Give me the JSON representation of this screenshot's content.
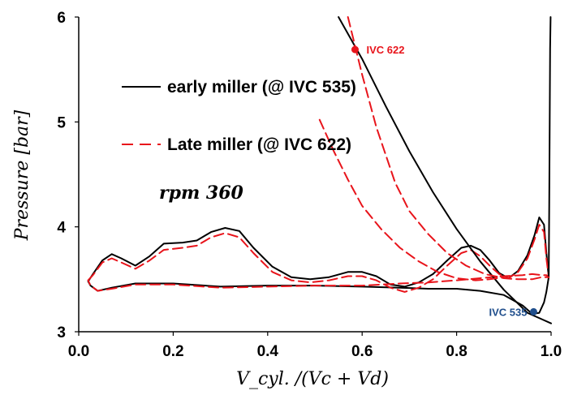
{
  "chart_data": {
    "type": "line",
    "xlabel": "V_cyl. /(Vc + Vd)",
    "ylabel": "Pressure [bar]",
    "xlim": [
      0,
      1
    ],
    "ylim": [
      3,
      6
    ],
    "xticks": [
      "0.0",
      "0.2",
      "0.4",
      "0.6",
      "0.8",
      "1.0"
    ],
    "yticks": [
      "3",
      "4",
      "5",
      "6"
    ],
    "grid": false,
    "legend_position": "top-left",
    "annotation_text": "rpm 360",
    "series": [
      {
        "name": "early miller (@ IVC 535)",
        "color": "#000000",
        "style": "solid",
        "x": [
          0.02,
          0.03,
          0.05,
          0.07,
          0.09,
          0.12,
          0.15,
          0.18,
          0.22,
          0.25,
          0.28,
          0.31,
          0.34,
          0.37,
          0.41,
          0.45,
          0.49,
          0.53,
          0.57,
          0.6,
          0.63,
          0.66,
          0.69,
          0.72,
          0.75,
          0.78,
          0.81,
          0.83,
          0.85,
          0.87,
          0.89,
          0.91,
          0.93,
          0.95,
          0.965,
          0.975,
          0.985,
          0.99,
          0.995,
          0.99,
          0.985,
          0.975,
          0.96,
          0.94,
          0.9,
          0.85,
          0.8,
          0.74,
          0.68,
          0.6,
          0.5,
          0.4,
          0.3,
          0.2,
          0.12,
          0.07,
          0.04,
          0.025,
          0.02
        ],
        "y": [
          3.48,
          3.55,
          3.68,
          3.74,
          3.7,
          3.63,
          3.72,
          3.84,
          3.85,
          3.87,
          3.95,
          3.99,
          3.96,
          3.8,
          3.62,
          3.52,
          3.5,
          3.52,
          3.57,
          3.57,
          3.53,
          3.45,
          3.43,
          3.47,
          3.55,
          3.68,
          3.8,
          3.82,
          3.78,
          3.68,
          3.56,
          3.51,
          3.58,
          3.73,
          3.92,
          4.09,
          4.02,
          3.75,
          3.52,
          3.38,
          3.28,
          3.18,
          3.17,
          3.25,
          3.35,
          3.39,
          3.41,
          3.41,
          3.42,
          3.43,
          3.44,
          3.44,
          3.43,
          3.46,
          3.46,
          3.42,
          3.39,
          3.44,
          3.48
        ]
      },
      {
        "name": "Late miller (@ IVC 622)",
        "color": "#e8141b",
        "style": "dashed",
        "x": [
          0.02,
          0.03,
          0.05,
          0.07,
          0.09,
          0.12,
          0.15,
          0.18,
          0.22,
          0.25,
          0.28,
          0.31,
          0.34,
          0.37,
          0.41,
          0.45,
          0.49,
          0.53,
          0.57,
          0.6,
          0.63,
          0.66,
          0.69,
          0.72,
          0.75,
          0.78,
          0.81,
          0.83,
          0.85,
          0.87,
          0.89,
          0.91,
          0.93,
          0.95,
          0.965,
          0.975,
          0.985,
          0.99,
          0.995,
          0.99,
          0.98,
          0.96,
          0.94,
          0.9,
          0.85,
          0.8,
          0.74,
          0.68,
          0.6,
          0.5,
          0.4,
          0.3,
          0.2,
          0.12,
          0.07,
          0.04,
          0.025,
          0.02
        ],
        "y": [
          3.49,
          3.54,
          3.66,
          3.7,
          3.66,
          3.6,
          3.68,
          3.78,
          3.8,
          3.82,
          3.9,
          3.94,
          3.9,
          3.75,
          3.57,
          3.49,
          3.47,
          3.49,
          3.53,
          3.53,
          3.49,
          3.42,
          3.38,
          3.42,
          3.5,
          3.63,
          3.75,
          3.78,
          3.72,
          3.63,
          3.55,
          3.51,
          3.57,
          3.7,
          3.88,
          4.02,
          3.95,
          3.7,
          3.52,
          3.54,
          3.54,
          3.55,
          3.54,
          3.53,
          3.51,
          3.49,
          3.47,
          3.46,
          3.44,
          3.44,
          3.43,
          3.42,
          3.45,
          3.45,
          3.41,
          3.39,
          3.44,
          3.49
        ]
      },
      {
        "name": "",
        "color": "#000000",
        "style": "solid",
        "x": [
          0.995,
          0.996,
          0.997,
          0.998,
          0.999
        ],
        "y": [
          3.52,
          4.2,
          5.0,
          5.7,
          6.0
        ]
      },
      {
        "name": "",
        "color": "#000000",
        "style": "solid",
        "x": [
          0.55,
          0.6,
          0.65,
          0.7,
          0.75,
          0.8,
          0.85,
          0.9,
          0.95,
          0.98,
          1.0
        ],
        "y": [
          6.0,
          5.6,
          5.15,
          4.72,
          4.33,
          3.98,
          3.67,
          3.4,
          3.18,
          3.12,
          3.08
        ]
      },
      {
        "name": "",
        "color": "#e8141b",
        "style": "dashed",
        "x": [
          0.57,
          0.6,
          0.63,
          0.67,
          0.7,
          0.74,
          0.78,
          0.82,
          0.86,
          0.9,
          0.93,
          0.96,
          0.98,
          0.995
        ],
        "y": [
          6.0,
          5.45,
          4.95,
          4.42,
          4.15,
          3.93,
          3.75,
          3.63,
          3.55,
          3.51,
          3.5,
          3.5,
          3.52,
          3.52
        ]
      },
      {
        "name": "",
        "color": "#e8141b",
        "style": "dashed",
        "x": [
          0.51,
          0.54,
          0.57,
          0.6,
          0.64,
          0.68,
          0.72,
          0.76,
          0.8,
          0.84,
          0.87,
          0.9
        ],
        "y": [
          5.02,
          4.72,
          4.45,
          4.2,
          3.98,
          3.8,
          3.67,
          3.57,
          3.51,
          3.49,
          3.5,
          3.52
        ]
      }
    ],
    "points": [
      {
        "label": "IVC 622",
        "x": 0.585,
        "y": 5.69,
        "color": "#e8141b"
      },
      {
        "label": "IVC 535",
        "x": 0.963,
        "y": 3.19,
        "color": "#1f4e8c"
      }
    ]
  }
}
